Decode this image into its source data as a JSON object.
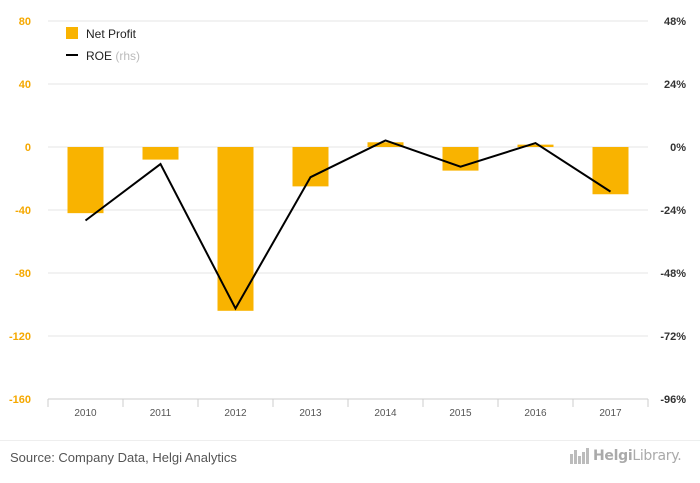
{
  "chart_data": {
    "type": "bar",
    "categories": [
      "2010",
      "2011",
      "2012",
      "2013",
      "2014",
      "2015",
      "2016",
      "2017"
    ],
    "series": [
      {
        "name": "Net Profit",
        "kind": "bar",
        "axis": "left",
        "color": "#f9b300",
        "values": [
          -42,
          -8,
          -104,
          -25,
          3,
          -15,
          1.5,
          -30
        ]
      },
      {
        "name": "ROE",
        "kind": "line",
        "axis": "right",
        "color": "#000000",
        "values": [
          -28,
          -6.5,
          -61.5,
          -11.5,
          2.5,
          -7.5,
          1.5,
          -17
        ]
      }
    ],
    "legend_suffix": "(rhs)",
    "left_axis": {
      "ylim": [
        -160,
        80
      ],
      "ticks": [
        "80",
        "40",
        "0",
        "-40",
        "-80",
        "-120",
        "-160"
      ],
      "color": "#f5a800"
    },
    "right_axis": {
      "ylim": [
        -96,
        48
      ],
      "ticks": [
        "48%",
        "24%",
        "0%",
        "-24%",
        "-48%",
        "-72%",
        "-96%"
      ]
    },
    "grid": true,
    "legend_position": "top-left"
  },
  "footer": {
    "source": "Source: Company Data, Helgi Analytics",
    "brand_bold": "Helgi",
    "brand_light": "Library."
  }
}
